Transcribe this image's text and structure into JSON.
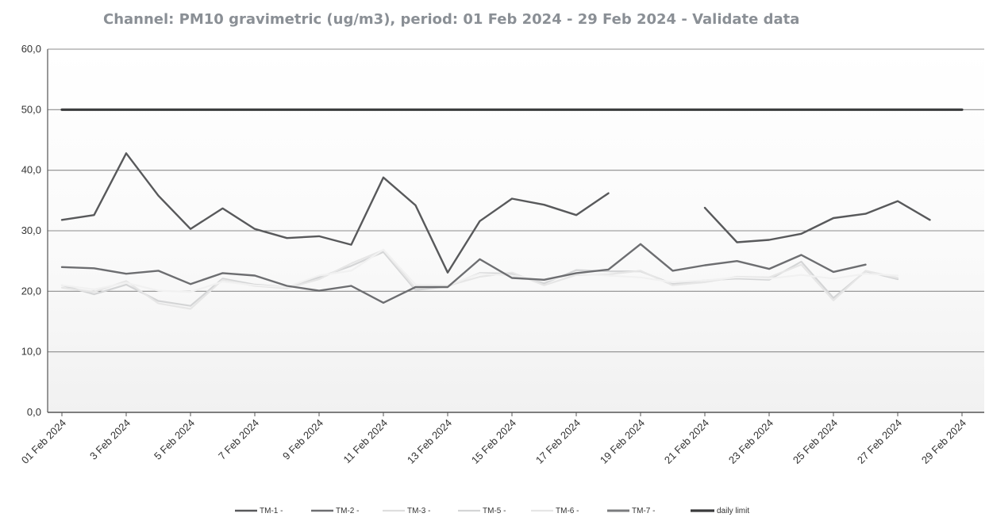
{
  "chart_data": {
    "type": "line",
    "title": "Channel: PM10 gravimetric (ug/m3), period: 01 Feb 2024 - 29 Feb 2024 - Validate data",
    "xlabel": "",
    "ylabel": "",
    "ylim": [
      0,
      60
    ],
    "yticks": [
      "0,0",
      "10,0",
      "20,0",
      "30,0",
      "40,0",
      "50,0",
      "60,0"
    ],
    "grid": true,
    "legend_position": "bottom",
    "x_tick_labels": [
      "01 Feb 2024",
      "3 Feb 2024",
      "5 Feb 2024",
      "7 Feb 2024",
      "9 Feb 2024",
      "11 Feb 2024",
      "13 Feb 2024",
      "15 Feb 2024",
      "17 Feb 2024",
      "19 Feb 2024",
      "21 Feb 2024",
      "23 Feb 2024",
      "25 Feb 2024",
      "27 Feb 2024",
      "29 Feb 2024"
    ],
    "x": [
      1,
      2,
      3,
      4,
      5,
      6,
      7,
      8,
      9,
      10,
      11,
      12,
      13,
      14,
      15,
      16,
      17,
      18,
      19,
      20,
      21,
      22,
      23,
      24,
      25,
      26,
      27,
      28,
      29
    ],
    "series": [
      {
        "name": "TM-1 -",
        "color": "#58595b",
        "width": 2.4,
        "values": [
          31.8,
          32.6,
          42.8,
          35.8,
          30.3,
          33.7,
          30.3,
          28.8,
          29.1,
          27.7,
          38.8,
          34.2,
          23.1,
          31.6,
          35.3,
          34.3,
          32.6,
          36.2,
          null,
          null,
          33.8,
          28.1,
          28.5,
          29.5,
          32.1,
          32.8,
          34.9,
          31.8,
          null
        ]
      },
      {
        "name": "TM-2 -",
        "color": "#6d6e71",
        "width": 2.4,
        "values": [
          24.0,
          23.8,
          22.9,
          23.4,
          21.2,
          23.0,
          22.6,
          20.9,
          20.1,
          20.9,
          18.1,
          20.7,
          20.7,
          25.3,
          22.2,
          21.9,
          23.0,
          23.6,
          27.8,
          23.4,
          24.3,
          25.0,
          23.7,
          26.0,
          23.2,
          24.4,
          null,
          null,
          null
        ]
      },
      {
        "name": "TM-3 -",
        "color": "#f1f1f1",
        "width": 2.2,
        "values": [
          21.0,
          20.3,
          21.4,
          20.1,
          19.9,
          21.6,
          21.0,
          20.7,
          22.6,
          23.4,
          26.9,
          21.1,
          21.0,
          22.9,
          22.6,
          21.7,
          22.9,
          22.6,
          22.3,
          21.5,
          21.8,
          22.3,
          22.1,
          22.7,
          22.1,
          22.9,
          22.6,
          null,
          null
        ]
      },
      {
        "name": "TM-5 -",
        "color": "#d4d5d6",
        "width": 2.2,
        "values": [
          21.0,
          19.5,
          21.1,
          18.4,
          17.6,
          22.1,
          21.1,
          20.7,
          22.3,
          24.2,
          26.5,
          20.2,
          20.8,
          23.0,
          22.9,
          21.3,
          23.5,
          23.3,
          23.3,
          21.2,
          21.8,
          22.1,
          21.9,
          24.9,
          18.9,
          23.3,
          22.0,
          null,
          null
        ]
      },
      {
        "name": "TM-6 -",
        "color": "#e6e6e6",
        "width": 2.2,
        "values": [
          20.6,
          19.9,
          21.7,
          18.0,
          17.1,
          21.9,
          20.9,
          20.5,
          22.0,
          24.6,
          26.8,
          20.5,
          20.9,
          22.4,
          23.1,
          21.0,
          22.7,
          22.8,
          23.4,
          21.0,
          21.5,
          22.4,
          22.3,
          24.4,
          18.5,
          23.4,
          22.2,
          null,
          null
        ]
      },
      {
        "name": "TM-7 -",
        "color": "#7b7c7e",
        "width": 3.0,
        "values": [
          null,
          null,
          null,
          null,
          null,
          null,
          null,
          null,
          null,
          null,
          null,
          null,
          null,
          null,
          null,
          null,
          null,
          null,
          null,
          null,
          null,
          null,
          null,
          null,
          null,
          null,
          null,
          null,
          null
        ]
      },
      {
        "name": "daily limit",
        "color": "#3a3b3c",
        "width": 3.2,
        "values": [
          50,
          50,
          50,
          50,
          50,
          50,
          50,
          50,
          50,
          50,
          50,
          50,
          50,
          50,
          50,
          50,
          50,
          50,
          50,
          50,
          50,
          50,
          50,
          50,
          50,
          50,
          50,
          50,
          50
        ]
      }
    ]
  }
}
